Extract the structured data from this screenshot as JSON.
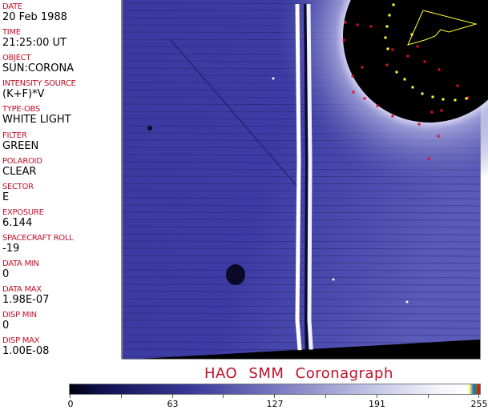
{
  "fields": [
    {
      "label": "DATE",
      "value": "20 Feb 1988"
    },
    {
      "label": "TIME",
      "value": "21:25:00 UT"
    },
    {
      "label": "OBJECT",
      "value": "SUN:CORONA"
    },
    {
      "label": "INTENSITY SOURCE",
      "value": "(K+F)*V"
    },
    {
      "label": "TYPE-OBS",
      "value": "WHITE LIGHT"
    },
    {
      "label": "FILTER",
      "value": "GREEN"
    },
    {
      "label": "POLAROID",
      "value": "CLEAR"
    },
    {
      "label": "SECTOR",
      "value": "E"
    },
    {
      "label": "EXPOSURE",
      "value": "6.144"
    },
    {
      "label": "SPACECRAFT ROLL",
      "value": "-19"
    },
    {
      "label": "DATA MIN",
      "value": "0"
    },
    {
      "label": "DATA MAX",
      "value": "1.98E-07"
    },
    {
      "label": "DISP MIN",
      "value": "0"
    },
    {
      "label": "DISP MAX",
      "value": "1.00E-08"
    }
  ],
  "title": "HAO  SMM Coronagraph",
  "colorbar": {
    "ticks": [
      "0",
      "63",
      "127",
      "191",
      "255"
    ],
    "colors": {
      "low": "#000010",
      "mid": "#7878c0",
      "high": "#ffffff"
    }
  },
  "colors": {
    "label": "#c0102a",
    "overlay_red": "#e0102a",
    "overlay_yellow": "#ffff30"
  }
}
